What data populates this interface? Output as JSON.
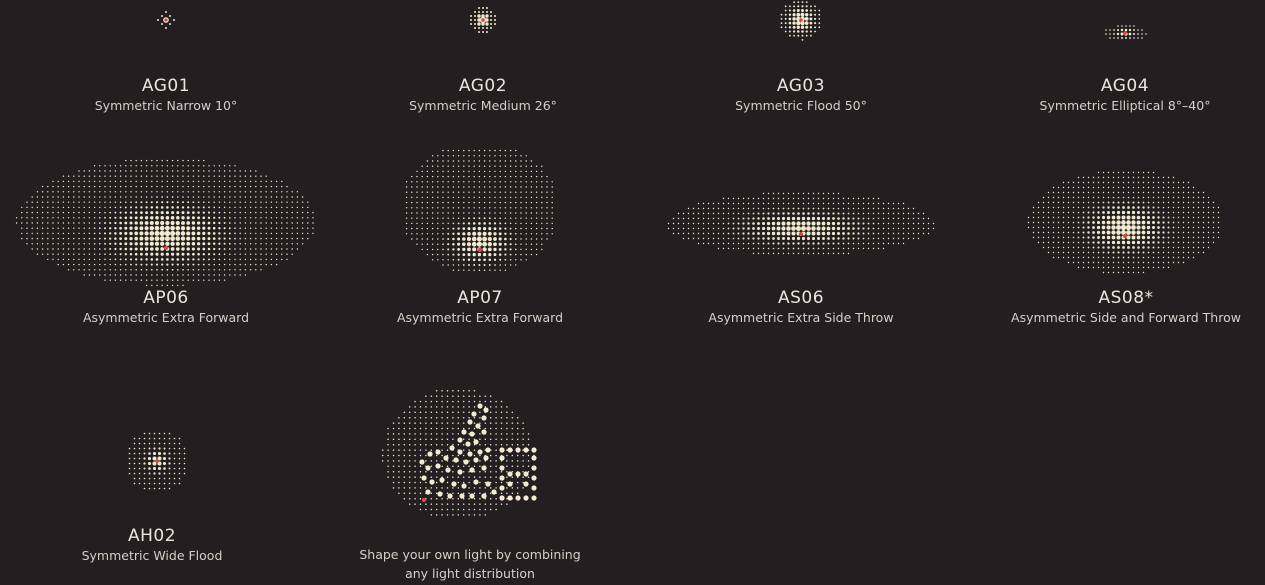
{
  "colors": {
    "background": "#231f20",
    "dot": "#f3ead0",
    "center": "#e0443c",
    "text": "#e9e6e0"
  },
  "distributions": [
    {
      "code": "AG01",
      "name": "Symmetric Narrow 10°"
    },
    {
      "code": "AG02",
      "name": "Symmetric Medium 26°"
    },
    {
      "code": "AG03",
      "name": "Symmetric Flood 50°"
    },
    {
      "code": "AG04",
      "name": "Symmetric Elliptical 8°–40°"
    },
    {
      "code": "AP06",
      "name": "Asymmetric Extra Forward"
    },
    {
      "code": "AP07",
      "name": "Asymmetric Extra Forward"
    },
    {
      "code": "AS06",
      "name": "Asymmetric Extra Side Throw"
    },
    {
      "code": "AS08*",
      "name": "Asymmetric Side and Forward Throw"
    },
    {
      "code": "AH02",
      "name": "Symmetric Wide Flood"
    }
  ],
  "custom": {
    "line1": "Shape your own light by combining",
    "line2": "any light distribution"
  }
}
